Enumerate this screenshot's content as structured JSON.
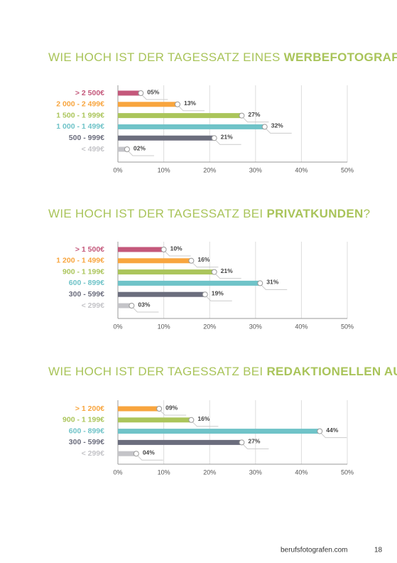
{
  "chart_data": [
    {
      "type": "hbar",
      "title": [
        "WIE HOCH IST DER TAGESSATZ EINES",
        "WERBEFOTOGRAFEN",
        "?"
      ],
      "categories": [
        "> 2 500€",
        "2 000 - 2 499€",
        "1 500 - 1 999€",
        "1 000 - 1 499€",
        "500 - 999€",
        "< 499€"
      ],
      "values": [
        5,
        13,
        27,
        32,
        21,
        2
      ],
      "value_labels": [
        "05%",
        "13%",
        "27%",
        "32%",
        "21%",
        "02%"
      ],
      "colors": [
        "#c4587b",
        "#f8a53e",
        "#abc55b",
        "#6fc3c8",
        "#6b6d7d",
        "#c4c4c8"
      ],
      "xlim": [
        0,
        50
      ],
      "xticks": [
        {
          "value": 0,
          "label": "0%"
        },
        {
          "value": 10,
          "label": "10%"
        },
        {
          "value": 20,
          "label": "20%"
        },
        {
          "value": 30,
          "label": "30%"
        },
        {
          "value": 40,
          "label": "40%"
        },
        {
          "value": 50,
          "label": "50%"
        }
      ],
      "grid": true
    },
    {
      "type": "hbar",
      "title": [
        "WIE HOCH IST DER TAGESSATZ BEI",
        "PRIVATKUNDEN",
        "?"
      ],
      "categories": [
        "> 1 500€",
        "1 200 - 1 499€",
        "900 - 1 199€",
        "600 - 899€",
        "300 - 599€",
        "< 299€"
      ],
      "values": [
        10,
        16,
        21,
        31,
        19,
        3
      ],
      "value_labels": [
        "10%",
        "16%",
        "21%",
        "31%",
        "19%",
        "03%"
      ],
      "colors": [
        "#c4587b",
        "#f8a53e",
        "#abc55b",
        "#6fc3c8",
        "#6b6d7d",
        "#c4c4c8"
      ],
      "xlim": [
        0,
        50
      ],
      "xticks": [
        {
          "value": 0,
          "label": "0%"
        },
        {
          "value": 10,
          "label": "10%"
        },
        {
          "value": 20,
          "label": "20%"
        },
        {
          "value": 30,
          "label": "30%"
        },
        {
          "value": 40,
          "label": "40%"
        },
        {
          "value": 50,
          "label": "50%"
        }
      ],
      "grid": true
    },
    {
      "type": "hbar",
      "title": [
        "WIE HOCH IST DER TAGESSATZ BEI",
        "REDAKTIONELLEN AUFTRÄGEN",
        "?"
      ],
      "categories": [
        "> 1 200€",
        "900 - 1 199€",
        "600 - 899€",
        "300 - 599€",
        "< 299€"
      ],
      "values": [
        9,
        16,
        44,
        27,
        4
      ],
      "value_labels": [
        "09%",
        "16%",
        "44%",
        "27%",
        "04%"
      ],
      "colors": [
        "#f8a53e",
        "#abc55b",
        "#6fc3c8",
        "#6b6d7d",
        "#c4c4c8"
      ],
      "xlim": [
        0,
        50
      ],
      "xticks": [
        {
          "value": 0,
          "label": "0%"
        },
        {
          "value": 10,
          "label": "10%"
        },
        {
          "value": 20,
          "label": "20%"
        },
        {
          "value": 30,
          "label": "30%"
        },
        {
          "value": 40,
          "label": "40%"
        },
        {
          "value": 50,
          "label": "50%"
        }
      ],
      "grid": true
    }
  ],
  "footer": {
    "site": "berufsfotografen.com",
    "page": "18"
  }
}
